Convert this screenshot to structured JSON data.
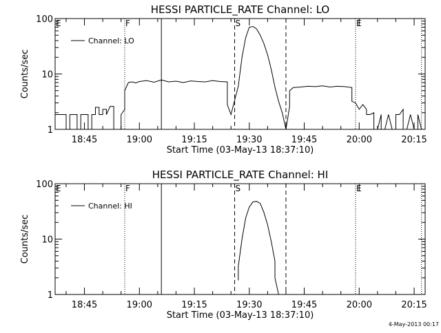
{
  "footer_date": "4-May-2013 00:17",
  "chart_data": [
    {
      "type": "line",
      "title": "HESSI PARTICLE_RATE Channel: LO",
      "xlabel": "Start Time (03-May-13 18:37:10)",
      "ylabel": "Counts/sec",
      "yscale": "log",
      "xlim": [
        "18:37",
        "20:18"
      ],
      "ylim": [
        1,
        100
      ],
      "x_ticks": [
        "18:45",
        "19:00",
        "19:15",
        "19:30",
        "19:45",
        "20:00",
        "20:15"
      ],
      "y_ticks": [
        "1",
        "10",
        "100"
      ],
      "legend": {
        "entries": [
          "Channel: LO"
        ],
        "placement": "top-left"
      },
      "markers": [
        {
          "time": "18:37",
          "label": "E",
          "style": "none"
        },
        {
          "time": "18:56",
          "label": "F",
          "style": "dotted"
        },
        {
          "time": "19:06",
          "label": "",
          "style": "solid"
        },
        {
          "time": "19:26",
          "label": "S",
          "style": "dashed"
        },
        {
          "time": "19:40",
          "label": "",
          "style": "dashed"
        },
        {
          "time": "19:59",
          "label": "E",
          "style": "dotted"
        },
        {
          "time": "20:17",
          "label": "",
          "style": "dotted"
        }
      ],
      "series": [
        {
          "name": "Channel: LO",
          "x": [
            "18:37",
            "18:40",
            "18:40",
            "18:41",
            "18:41",
            "18:43",
            "18:43",
            "18:44",
            "18:44",
            "18:46",
            "18:46",
            "18:47",
            "18:47",
            "18:48",
            "18:48",
            "18:49",
            "18:49",
            "18:50",
            "18:50",
            "18:51",
            "18:51",
            "18:52",
            "18:53",
            "18:53",
            "18:54",
            "18:55",
            "18:55",
            "18:56",
            "18:56",
            "18:57",
            "18:58",
            "18:59",
            "19:00",
            "19:02",
            "19:04",
            "19:06",
            "19:08",
            "19:10",
            "19:12",
            "19:14",
            "19:16",
            "19:18",
            "19:20",
            "19:22",
            "19:24",
            "19:24",
            "19:25",
            "19:25",
            "19:27",
            "19:28",
            "19:29",
            "19:30",
            "19:31",
            "19:32",
            "19:33",
            "19:34",
            "19:35",
            "19:36",
            "19:37",
            "19:38",
            "19:39",
            "19:40",
            "19:40",
            "19:41",
            "19:41",
            "19:42",
            "19:44",
            "19:46",
            "19:48",
            "19:50",
            "19:52",
            "19:54",
            "19:56",
            "19:58",
            "19:58",
            "19:59",
            "20:00",
            "20:01",
            "20:02",
            "20:02",
            "20:03",
            "20:04",
            "20:04",
            "20:05",
            "20:06",
            "20:06",
            "20:07",
            "20:08",
            "20:08",
            "20:09",
            "20:10",
            "20:10",
            "20:11",
            "20:12",
            "20:12",
            "20:13",
            "20:14",
            "20:14",
            "20:15",
            "20:16",
            "20:16",
            "20:17"
          ],
          "y": [
            1.85,
            1.85,
            1.0,
            1.0,
            1.85,
            1.85,
            1.0,
            1.0,
            1.85,
            1.85,
            1.0,
            1.0,
            1.85,
            1.85,
            2.5,
            2.5,
            1.85,
            1.85,
            2.3,
            2.3,
            1.85,
            2.6,
            2.6,
            1.0,
            1.0,
            1.0,
            1.85,
            2.3,
            5.0,
            7.0,
            7.2,
            6.9,
            7.3,
            7.6,
            7.1,
            7.8,
            7.2,
            7.4,
            7.0,
            7.5,
            7.3,
            7.2,
            7.6,
            7.3,
            7.2,
            2.8,
            1.85,
            1.85,
            6.0,
            20,
            45,
            70,
            72,
            65,
            50,
            35,
            22,
            12,
            5.8,
            3.2,
            2.0,
            1.0,
            1.0,
            2.6,
            5.0,
            5.7,
            5.8,
            6.0,
            5.9,
            6.1,
            5.8,
            6.0,
            5.9,
            5.7,
            3.2,
            3.0,
            2.3,
            2.8,
            2.3,
            1.85,
            1.85,
            2.0,
            1.0,
            1.0,
            1.85,
            1.0,
            1.0,
            1.85,
            1.85,
            1.0,
            1.0,
            1.85,
            1.85,
            2.3,
            1.0,
            1.0,
            1.85,
            1.85,
            1.0,
            1.0,
            1.85,
            1.0
          ]
        }
      ]
    },
    {
      "type": "line",
      "title": "HESSI PARTICLE_RATE Channel: HI",
      "xlabel": "Start Time (03-May-13 18:37:10)",
      "ylabel": "Counts/sec",
      "yscale": "log",
      "xlim": [
        "18:37",
        "20:18"
      ],
      "ylim": [
        1,
        100
      ],
      "x_ticks": [
        "18:45",
        "19:00",
        "19:15",
        "19:30",
        "19:45",
        "20:00",
        "20:15"
      ],
      "y_ticks": [
        "1",
        "10",
        "100"
      ],
      "legend": {
        "entries": [
          "Channel: HI"
        ],
        "placement": "top-left"
      },
      "markers": [
        {
          "time": "18:37",
          "label": "E",
          "style": "none"
        },
        {
          "time": "18:56",
          "label": "F",
          "style": "dotted"
        },
        {
          "time": "19:06",
          "label": "",
          "style": "solid"
        },
        {
          "time": "19:26",
          "label": "S",
          "style": "dashed"
        },
        {
          "time": "19:40",
          "label": "",
          "style": "dashed"
        },
        {
          "time": "19:59",
          "label": "E",
          "style": "dotted"
        },
        {
          "time": "20:17",
          "label": "",
          "style": "dotted"
        }
      ],
      "series": [
        {
          "name": "Channel: HI",
          "x": [
            "19:27",
            "19:27",
            "19:28",
            "19:29",
            "19:30",
            "19:31",
            "19:32",
            "19:33",
            "19:34",
            "19:35",
            "19:36",
            "19:37",
            "19:37",
            "19:38"
          ],
          "y": [
            1.8,
            3.2,
            10,
            24,
            38,
            47,
            48,
            44,
            30,
            18,
            9,
            4,
            2,
            1.0
          ]
        }
      ]
    }
  ]
}
